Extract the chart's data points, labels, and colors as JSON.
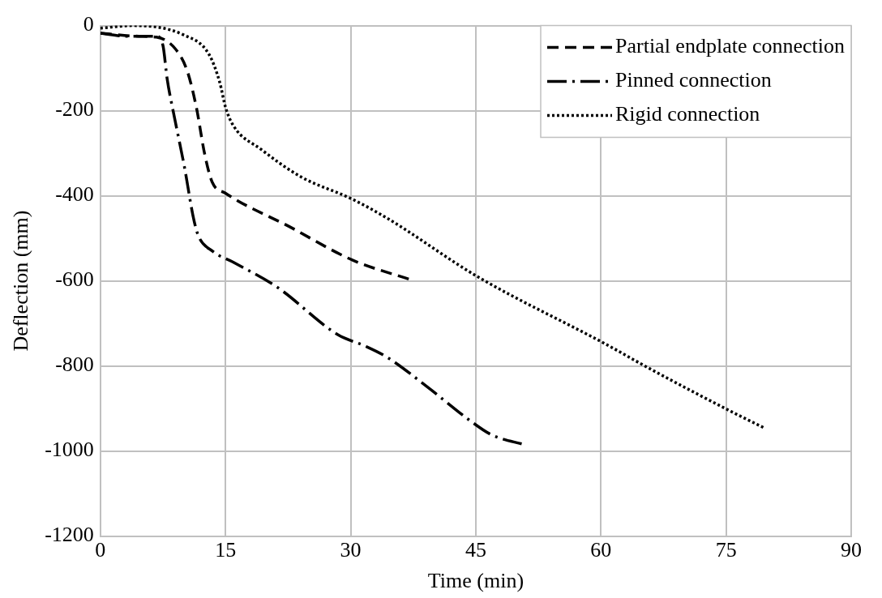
{
  "chart_data": {
    "type": "line",
    "xlabel": "Time (min)",
    "ylabel": "Deflection (mm)",
    "xlim": [
      0,
      90
    ],
    "xticks": [
      0,
      15,
      30,
      45,
      60,
      75,
      90
    ],
    "ylim": [
      -1200,
      0
    ],
    "yticks": [
      -1200,
      -1000,
      -800,
      -600,
      -400,
      -200,
      0
    ],
    "grid": true,
    "legend": "top right",
    "marker": "none",
    "series": [
      {
        "name": "Partial endplate connection",
        "color": "#000000",
        "line_style": "dashed",
        "x": [
          0,
          4.6,
          6.7,
          9,
          10.4,
          11.5,
          12.5,
          13.4,
          15,
          22.6,
          30.2,
          37.3
        ],
        "values": [
          -18,
          -25,
          -27,
          -55,
          -106,
          -192,
          -302,
          -368,
          -394,
          -472,
          -551,
          -598
        ]
      },
      {
        "name": "Pinned connection",
        "color": "#000000",
        "line_style": "dashdot",
        "x": [
          0,
          3.1,
          6.7,
          7.5,
          8,
          8.9,
          10.1,
          11.1,
          11.7,
          13.5,
          16,
          21.2,
          28.5,
          31.7,
          34.4,
          39.3,
          44.2,
          46.9,
          51
        ],
        "values": [
          -18,
          -25,
          -25,
          -47,
          -125,
          -218,
          -335,
          -447,
          -492,
          -531,
          -557,
          -615,
          -727,
          -753,
          -780,
          -851,
          -927,
          -962,
          -986
        ]
      },
      {
        "name": "Rigid connection",
        "color": "#000000",
        "line_style": "dotted",
        "x": [
          0,
          3.9,
          10,
          13,
          14.3,
          15,
          16,
          19.2,
          24,
          30.2,
          34.4,
          45.2,
          60.6,
          66,
          75.7,
          79.5
        ],
        "values": [
          -6,
          0,
          -22,
          -67,
          -133,
          -192,
          -237,
          -290,
          -355,
          -408,
          -453,
          -590,
          -749,
          -808,
          -908,
          -945
        ]
      }
    ]
  }
}
